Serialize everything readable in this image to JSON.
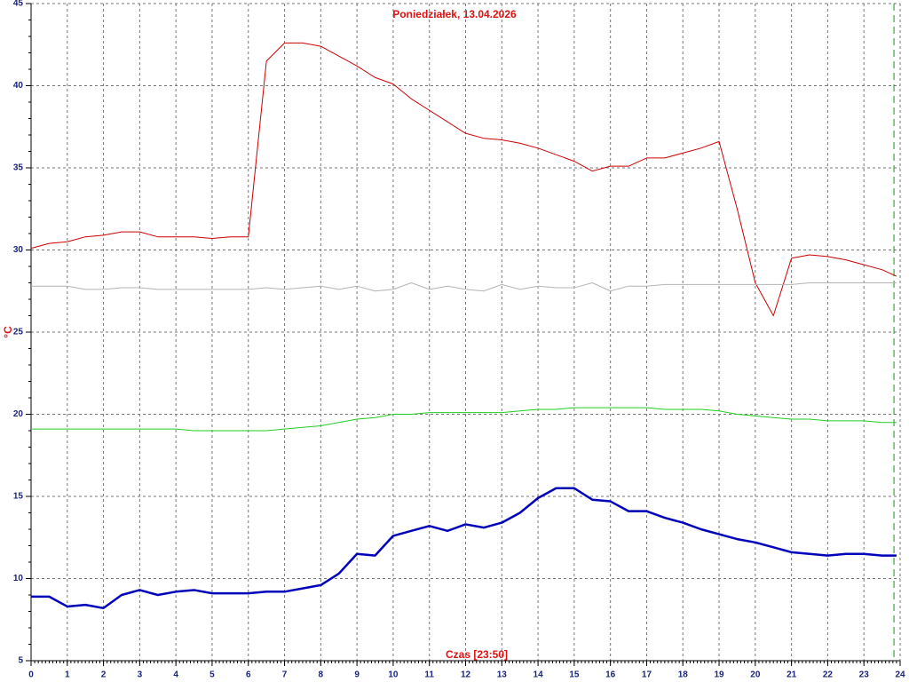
{
  "chart_data": {
    "type": "line",
    "title": "Poniedziałek, 13.04.2026",
    "x_label": "Czas [23:50]",
    "y_label": "°C",
    "x": [
      0,
      0.5,
      1,
      1.5,
      2,
      2.5,
      3,
      3.5,
      4,
      4.5,
      5,
      5.5,
      6,
      6.5,
      7,
      7.5,
      8,
      8.5,
      9,
      9.5,
      10,
      10.5,
      11,
      11.5,
      12,
      12.5,
      13,
      13.5,
      14,
      14.5,
      15,
      15.5,
      16,
      16.5,
      17,
      17.5,
      18,
      18.5,
      19,
      19.5,
      20,
      20.5,
      21,
      21.5,
      22,
      22.5,
      23,
      23.5,
      23.9
    ],
    "series": [
      {
        "color": "#cc0000",
        "line_width": 1,
        "values": [
          30.1,
          30.4,
          30.5,
          30.8,
          30.9,
          31.1,
          31.1,
          30.8,
          30.8,
          30.8,
          30.7,
          30.8,
          30.8,
          41.5,
          42.6,
          42.6,
          42.4,
          41.8,
          41.2,
          40.5,
          40.1,
          39.2,
          38.5,
          37.8,
          37.1,
          36.8,
          36.7,
          36.5,
          36.2,
          35.8,
          35.4,
          34.8,
          35.1,
          35.1,
          35.6,
          35.6,
          35.9,
          36.2,
          36.6,
          32.5,
          28.0,
          26.0,
          29.5,
          29.7,
          29.6,
          29.4,
          29.1,
          28.8,
          28.4
        ]
      },
      {
        "color": "#b4b4b4",
        "line_width": 1,
        "values": [
          27.8,
          27.8,
          27.8,
          27.6,
          27.6,
          27.7,
          27.7,
          27.6,
          27.6,
          27.6,
          27.6,
          27.6,
          27.6,
          27.7,
          27.6,
          27.7,
          27.8,
          27.6,
          27.8,
          27.5,
          27.6,
          28.0,
          27.6,
          27.8,
          27.6,
          27.5,
          27.9,
          27.6,
          27.8,
          27.7,
          27.7,
          28.0,
          27.5,
          27.8,
          27.8,
          27.9,
          27.9,
          27.9,
          27.9,
          27.9,
          27.9,
          27.9,
          27.9,
          28.0,
          28.0,
          28.0,
          28.0,
          28.0,
          28.0
        ]
      },
      {
        "color": "#22cc22",
        "line_width": 1,
        "values": [
          19.1,
          19.1,
          19.1,
          19.1,
          19.1,
          19.1,
          19.1,
          19.1,
          19.1,
          19.0,
          19.0,
          19.0,
          19.0,
          19.0,
          19.1,
          19.2,
          19.3,
          19.5,
          19.7,
          19.8,
          20.0,
          20.0,
          20.1,
          20.1,
          20.1,
          20.1,
          20.1,
          20.2,
          20.3,
          20.3,
          20.4,
          20.4,
          20.4,
          20.4,
          20.4,
          20.3,
          20.3,
          20.3,
          20.2,
          20.0,
          19.9,
          19.8,
          19.7,
          19.7,
          19.6,
          19.6,
          19.6,
          19.5,
          19.5
        ]
      },
      {
        "color": "#0000bb",
        "line_width": 2.5,
        "values": [
          8.9,
          8.9,
          8.3,
          8.4,
          8.2,
          9.0,
          9.3,
          9.0,
          9.2,
          9.3,
          9.1,
          9.1,
          9.1,
          9.2,
          9.2,
          9.4,
          9.6,
          10.3,
          11.5,
          11.4,
          12.6,
          12.9,
          13.2,
          12.9,
          13.3,
          13.1,
          13.4,
          14.0,
          14.9,
          15.5,
          15.5,
          14.8,
          14.7,
          14.1,
          14.1,
          13.7,
          13.4,
          13.0,
          12.7,
          12.4,
          12.2,
          11.9,
          11.6,
          11.5,
          11.4,
          11.5,
          11.5,
          11.4,
          11.4
        ]
      }
    ],
    "now_marker": 23.83,
    "xlim": [
      0,
      24
    ],
    "xticks": [
      0,
      1,
      2,
      3,
      4,
      5,
      6,
      7,
      8,
      9,
      10,
      11,
      12,
      13,
      14,
      15,
      16,
      17,
      18,
      19,
      20,
      21,
      22,
      23,
      24
    ],
    "ylim": [
      5,
      45
    ],
    "yticks": [
      5,
      10,
      15,
      20,
      25,
      30,
      35,
      40,
      45
    ],
    "grid": true
  }
}
